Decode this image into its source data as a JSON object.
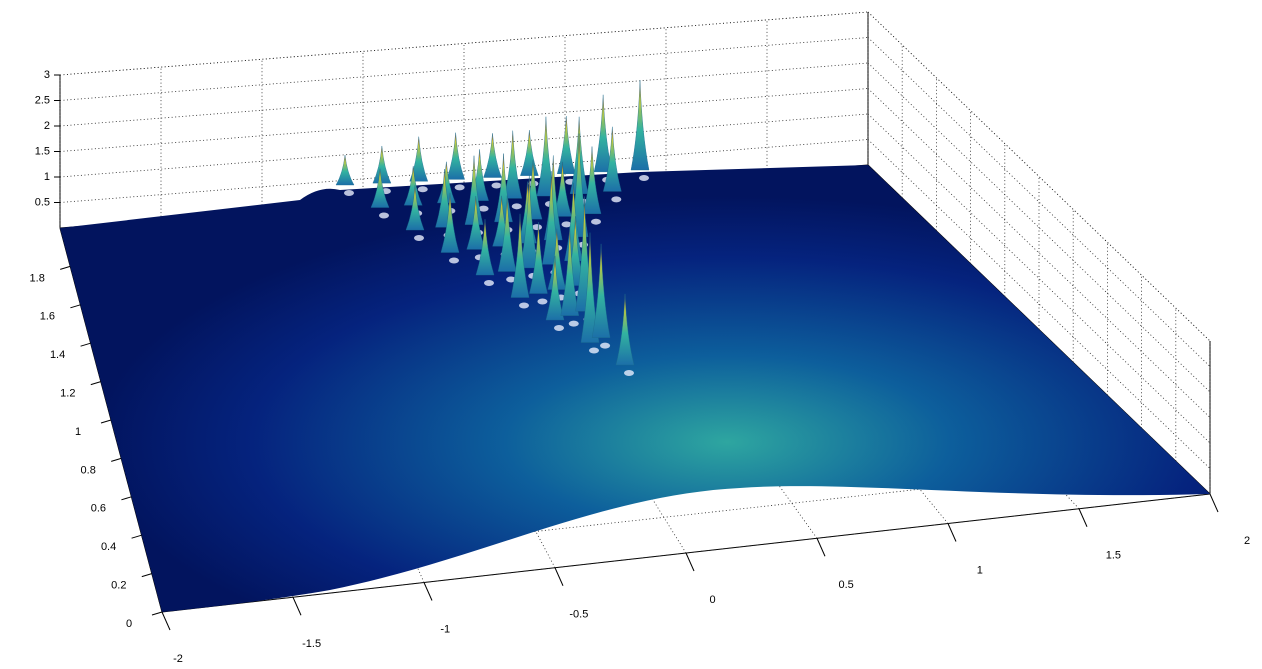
{
  "chart_data": {
    "type": "surface",
    "xlim": [
      -2,
      2
    ],
    "xticks": [
      -2,
      -1.5,
      -1,
      -0.5,
      0,
      0.5,
      1,
      1.5,
      2
    ],
    "ylim": [
      0,
      2
    ],
    "yticks": [
      0,
      0.2,
      0.4,
      0.6,
      0.8,
      1,
      1.2,
      1.4,
      1.6,
      1.8
    ],
    "zlim": [
      0,
      3
    ],
    "zticks": [
      0.5,
      1,
      1.5,
      2,
      2.5,
      3
    ],
    "grid": true
  }
}
